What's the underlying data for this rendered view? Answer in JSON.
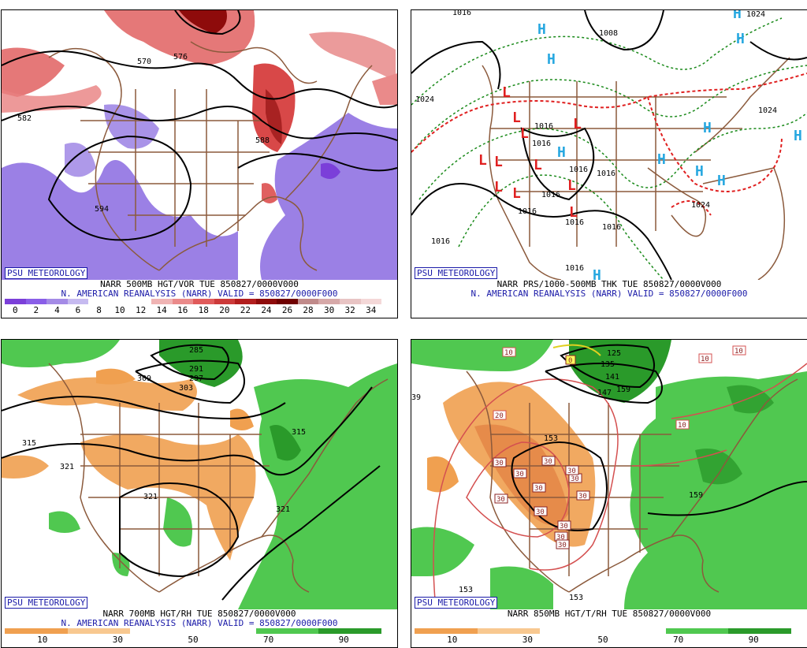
{
  "panels": [
    {
      "id": "p1",
      "badge": "PSU METEOROLOGY",
      "line1": "NARR 500MB HGT/VOR TUE 850827/0000V000",
      "line2": "N. AMERICAN REANALYSIS (NARR) VALID = 850827/0000F000",
      "colorbar": {
        "colors": [
          "#7b3fd9",
          "#8a5ee8",
          "#a48be6",
          "#c6baf0",
          "#ffffff",
          "#ffffff",
          "#ffffff",
          "#f0b4b4",
          "#ea8a8a",
          "#e05a5a",
          "#cc3a3a",
          "#b21e1e",
          "#8e0b0b",
          "#6f0000",
          "#c08a8a",
          "#d6a8a8",
          "#e8c4c4",
          "#f4d8d8"
        ],
        "labels": [
          "0",
          "2",
          "4",
          "6",
          "8",
          "10",
          "12",
          "14",
          "16",
          "18",
          "20",
          "22",
          "24",
          "26",
          "28",
          "30",
          "32",
          "34"
        ]
      },
      "contour_labels": [
        "570",
        "582",
        "594",
        "576",
        "588"
      ]
    },
    {
      "id": "p2",
      "badge": "PSU METEOROLOGY",
      "line1": "NARR PRS/1000-500MB THK TUE 850827/0000V000",
      "line2": "N. AMERICAN REANALYSIS (NARR) VALID = 850827/0000F000",
      "contour_labels": [
        "1016",
        "1008",
        "1024",
        "1024",
        "1016",
        "1016",
        "1016",
        "1016",
        "1016",
        "1016",
        "1016",
        "1024",
        "1016",
        "1024",
        "1016",
        "1016"
      ],
      "high_marker": "H",
      "low_marker": "L"
    },
    {
      "id": "p3",
      "badge": "PSU METEOROLOGY",
      "line1": "NARR 700MB HGT/RH TUE 850827/0000V000",
      "line2": "N. AMERICAN REANALYSIS (NARR) VALID = 850827/0000F000",
      "colorbar": {
        "colors": [
          "#f0a050",
          "#f0a050",
          "#f8c890",
          "#f8c890",
          "#ffffff",
          "#ffffff",
          "#ffffff",
          "#ffffff",
          "#50c850",
          "#50c850",
          "#2a9a2a",
          "#2a9a2a"
        ],
        "labels": [
          "10",
          "30",
          "50",
          "70",
          "90"
        ]
      },
      "contour_labels": [
        "285",
        "291",
        "297",
        "303",
        "309",
        "315",
        "321",
        "321",
        "315",
        "321"
      ]
    },
    {
      "id": "p4",
      "badge": "PSU METEOROLOGY",
      "line1": "NARR 850MB HGT/T/RH TUE 850827/0000V000",
      "colorbar": {
        "colors": [
          "#f0a050",
          "#f0a050",
          "#f8c890",
          "#f8c890",
          "#ffffff",
          "#ffffff",
          "#ffffff",
          "#ffffff",
          "#50c850",
          "#50c850",
          "#2a9a2a",
          "#2a9a2a"
        ],
        "labels": [
          "10",
          "30",
          "50",
          "70",
          "90"
        ]
      },
      "contour_labels": [
        "125",
        "135",
        "141",
        "147",
        "153",
        "153",
        "159",
        "153",
        "159",
        "0",
        "10",
        "10",
        "10",
        "10",
        "20",
        "30",
        "30",
        "30",
        "30",
        "30",
        "30",
        "30",
        "30",
        "30",
        "30",
        "30",
        "30",
        "39"
      ]
    }
  ]
}
